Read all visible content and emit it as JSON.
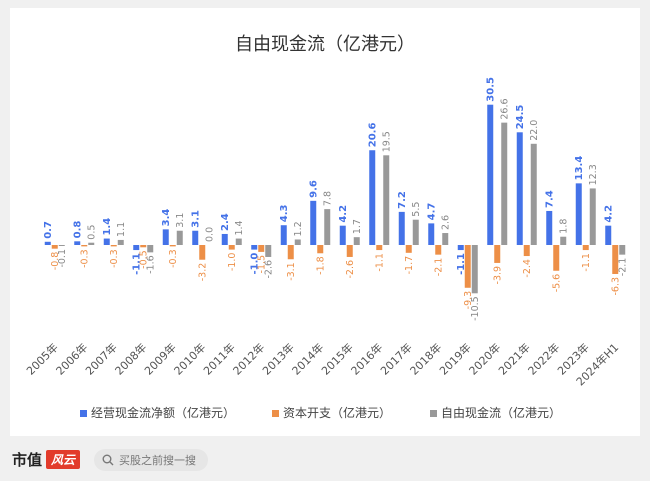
{
  "footer": {
    "brand_text": "市值",
    "brand_mark": "风云",
    "search_placeholder": "买股之前搜一搜",
    "search_icon": "search-icon"
  },
  "chart_data": {
    "type": "bar",
    "title": "自由现金流（亿港元）",
    "xlabel": "",
    "ylabel": "",
    "ylim": [
      -11,
      32
    ],
    "grid": false,
    "legend_position": "bottom",
    "categories": [
      "2005年",
      "2006年",
      "2007年",
      "2008年",
      "2009年",
      "2010年",
      "2011年",
      "2012年",
      "2013年",
      "2014年",
      "2015年",
      "2016年",
      "2017年",
      "2018年",
      "2019年",
      "2020年",
      "2021年",
      "2022年",
      "2023年",
      "2024年H1"
    ],
    "series": [
      {
        "name": "经营现金流净额（亿港元）",
        "color": "#4472e8",
        "values": [
          0.7,
          0.8,
          1.4,
          -1.1,
          3.4,
          3.1,
          2.4,
          -1.0,
          4.3,
          9.6,
          4.2,
          20.6,
          7.2,
          4.7,
          -1.1,
          30.5,
          24.5,
          7.4,
          13.4,
          4.2
        ]
      },
      {
        "name": "资本开支（亿港元）",
        "color": "#ed8f47",
        "values": [
          -0.8,
          -0.3,
          -0.3,
          -0.5,
          -0.3,
          -3.2,
          -1.0,
          -1.5,
          -3.1,
          -1.8,
          -2.6,
          -1.1,
          -1.7,
          -2.1,
          -9.3,
          -3.9,
          -2.4,
          -5.6,
          -1.1,
          -6.3
        ]
      },
      {
        "name": "自由现金流（亿港元）",
        "color": "#999999",
        "values": [
          -0.1,
          0.5,
          1.1,
          -1.6,
          3.1,
          0.0,
          1.4,
          -2.6,
          1.2,
          7.8,
          1.7,
          19.5,
          5.5,
          2.6,
          -10.5,
          26.6,
          22.0,
          1.8,
          12.3,
          -2.1
        ]
      }
    ]
  }
}
